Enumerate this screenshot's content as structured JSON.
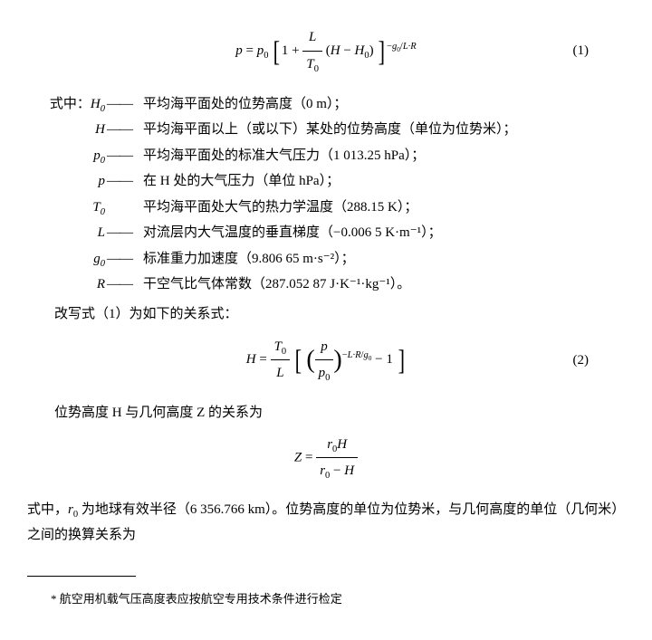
{
  "eq1": {
    "lhs": "p = p",
    "sub0": "0",
    "expTop": "− g",
    "expTop2": " / L·R",
    "num": "(1)"
  },
  "defs_intro": "式中：",
  "defs": [
    {
      "sym": "H",
      "sub": "0",
      "dash": "——",
      "desc": "平均海平面处的位势高度（0 m）；"
    },
    {
      "sym": "H",
      "sub": "",
      "dash": "——",
      "desc": "平均海平面以上（或以下）某处的位势高度（单位为位势米）；"
    },
    {
      "sym": "p",
      "sub": "0",
      "dash": "——",
      "desc": "平均海平面处的标准大气压力（1 013.25 hPa）；"
    },
    {
      "sym": "p",
      "sub": "",
      "dash": "——",
      "desc": "在 H 处的大气压力（单位 hPa）；"
    },
    {
      "sym": "T",
      "sub": "0",
      "dash": "",
      "desc": "平均海平面处大气的热力学温度（288.15 K）；"
    },
    {
      "sym": "L",
      "sub": "",
      "dash": "——",
      "desc": "对流层内大气温度的垂直梯度（−0.006 5 K·m⁻¹）；"
    },
    {
      "sym": "g",
      "sub": "0",
      "dash": "——",
      "desc": "标准重力加速度（9.806 65 m·s⁻²）；"
    },
    {
      "sym": "R",
      "sub": "",
      "dash": "——",
      "desc": "干空气比气体常数（287.052 87 J·K⁻¹·kg⁻¹）。"
    }
  ],
  "para1": "改写式（1）为如下的关系式：",
  "eq2": {
    "num": "(2)"
  },
  "para2": "位势高度 H 与几何高度 Z 的关系为",
  "para3a": "式中，",
  "para3b": " 为地球有效半径（6 356.766 km）。位势高度的单位为位势米，与几何高度的单位（几何米）之间的换算关系为",
  "footnote": "* 航空用机载气压高度表应按航空专用技术条件进行检定"
}
